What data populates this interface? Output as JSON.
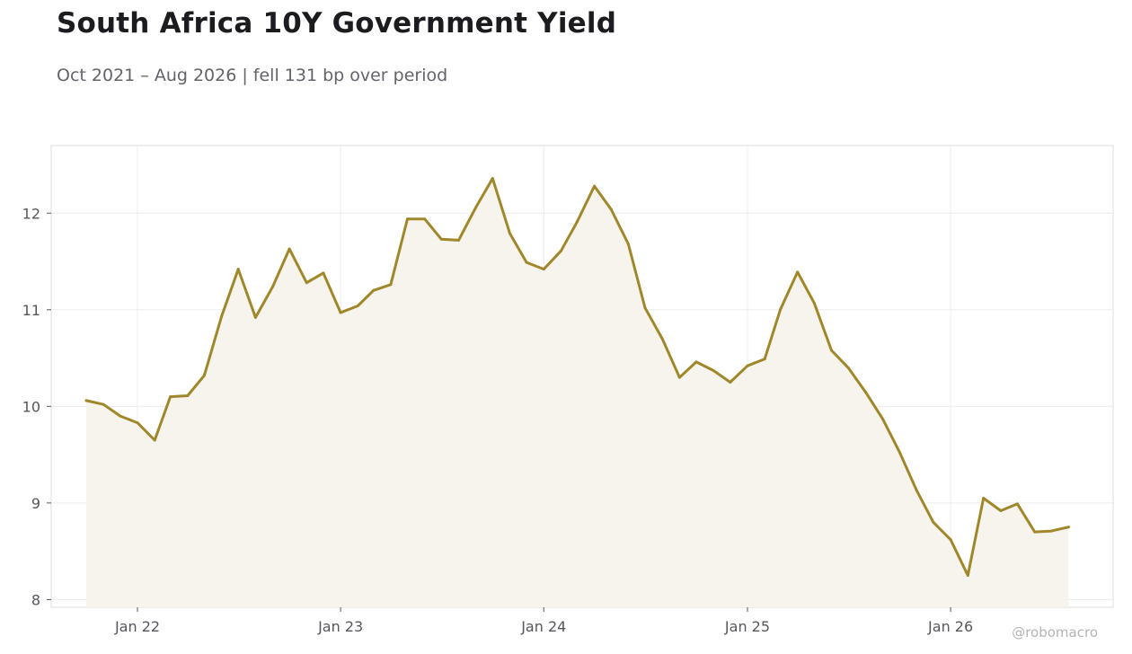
{
  "chart_data": {
    "type": "area",
    "title": "South Africa 10Y Government Yield",
    "subtitle": "Oct 2021 – Aug 2026 | fell 131 bp over period",
    "xlabel": "",
    "ylabel": "",
    "ylim": [
      7.92,
      12.7
    ],
    "xlim": [
      "2021-07-30",
      "2026-10-20"
    ],
    "yticks": [
      8,
      9,
      10,
      11,
      12
    ],
    "xticks": [
      {
        "date": "2022-01-01",
        "label": "Jan 22"
      },
      {
        "date": "2023-01-01",
        "label": "Jan 23"
      },
      {
        "date": "2024-01-01",
        "label": "Jan 24"
      },
      {
        "date": "2025-01-01",
        "label": "Jan 25"
      },
      {
        "date": "2026-01-01",
        "label": "Jan 26"
      }
    ],
    "grid": true,
    "series": [
      {
        "color": "#a0872a",
        "fill": "#f7f4ee",
        "x": [
          "2021-10-01",
          "2021-11-01",
          "2021-12-01",
          "2022-01-01",
          "2022-02-01",
          "2022-03-01",
          "2022-04-01",
          "2022-05-01",
          "2022-06-01",
          "2022-07-01",
          "2022-08-01",
          "2022-09-01",
          "2022-10-01",
          "2022-11-01",
          "2022-12-01",
          "2023-01-01",
          "2023-02-01",
          "2023-03-01",
          "2023-04-01",
          "2023-05-01",
          "2023-06-01",
          "2023-07-01",
          "2023-08-01",
          "2023-09-01",
          "2023-10-01",
          "2023-11-01",
          "2023-12-01",
          "2024-01-01",
          "2024-02-01",
          "2024-03-01",
          "2024-04-01",
          "2024-05-01",
          "2024-06-01",
          "2024-07-01",
          "2024-08-01",
          "2024-09-01",
          "2024-10-01",
          "2024-11-01",
          "2024-12-01",
          "2025-01-01",
          "2025-02-01",
          "2025-03-01",
          "2025-04-01",
          "2025-05-01",
          "2025-06-01",
          "2025-07-01",
          "2025-08-01",
          "2025-09-01",
          "2025-10-01",
          "2025-11-01",
          "2025-12-01",
          "2026-01-01",
          "2026-02-01",
          "2026-03-01",
          "2026-04-01",
          "2026-05-01",
          "2026-06-01",
          "2026-07-01",
          "2026-08-01"
        ],
        "values": [
          10.06,
          10.02,
          9.9,
          9.83,
          9.65,
          10.1,
          10.11,
          10.32,
          10.93,
          11.42,
          10.92,
          11.24,
          11.63,
          11.28,
          11.38,
          10.97,
          11.04,
          11.2,
          11.26,
          11.94,
          11.94,
          11.73,
          11.72,
          12.06,
          12.36,
          11.79,
          11.49,
          11.42,
          11.61,
          11.91,
          12.28,
          12.04,
          11.68,
          11.02,
          10.7,
          10.3,
          10.46,
          10.37,
          10.25,
          10.42,
          10.49,
          11.0,
          11.39,
          11.07,
          10.58,
          10.4,
          10.15,
          9.87,
          9.53,
          9.13,
          8.8,
          8.62,
          8.25,
          9.05,
          8.92,
          8.99,
          8.7,
          8.71,
          8.75
        ]
      }
    ]
  },
  "watermark": "@robomacro"
}
